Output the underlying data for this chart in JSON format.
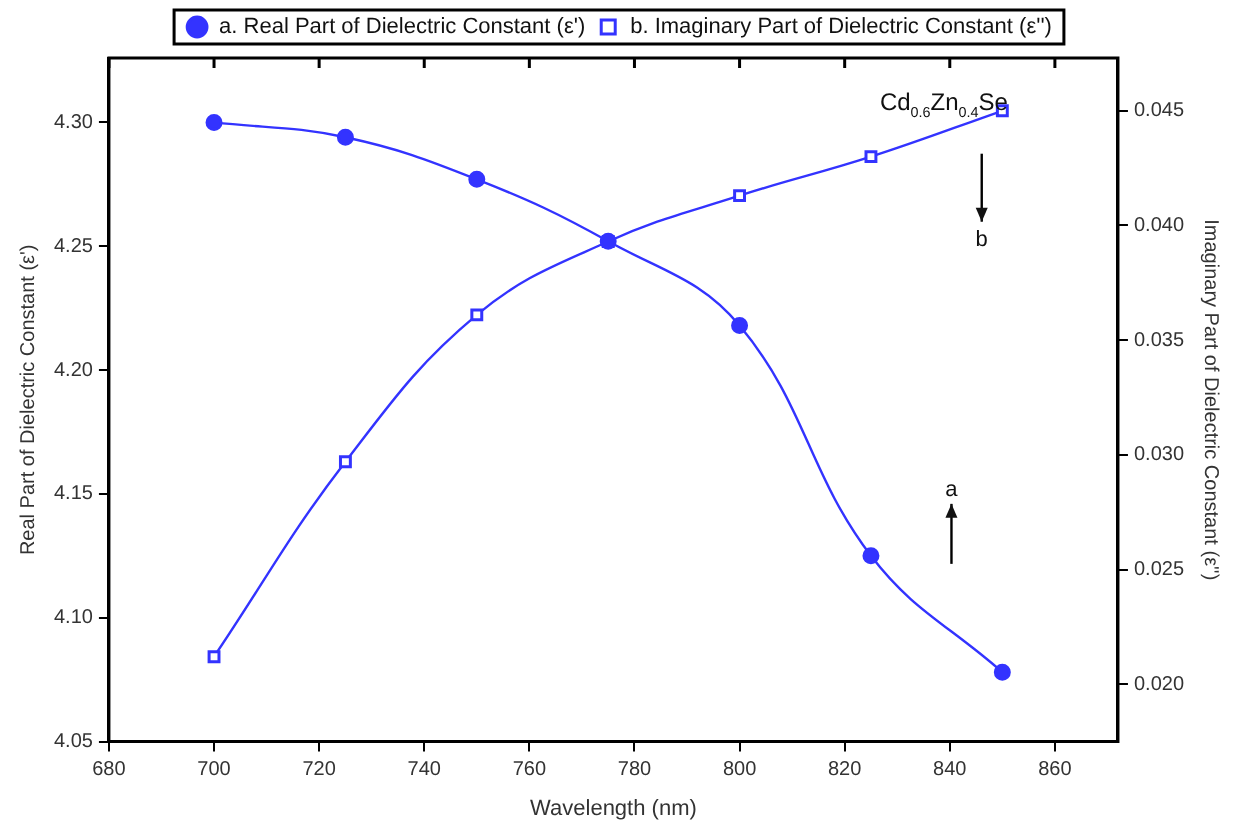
{
  "chart_data": {
    "type": "line",
    "xlabel": "Wavelength (nm)",
    "ylabel": "Real Part of Dielectric Constant (ε')",
    "y2label": "Imaginary Part of Dielectric Constant (ε'')",
    "x": [
      700,
      725,
      750,
      775,
      800,
      825,
      850
    ],
    "series": [
      {
        "name": "a. Real Part of Dielectric Constant (ε')",
        "color": "#3333ff",
        "marker": "circle",
        "values": [
          4.3,
          4.294,
          4.277,
          4.252,
          4.218,
          4.125,
          4.078
        ]
      },
      {
        "name": "b. Imaginary Part of Dielectric Constant (ε'')",
        "color": "#3333ff",
        "marker": "square",
        "axis": "y2",
        "values": [
          0.0212,
          0.0297,
          0.0361,
          0.0393,
          0.0413,
          0.043,
          0.045
        ]
      }
    ],
    "xlim": [
      680,
      872
    ],
    "xticks": [
      680,
      700,
      720,
      740,
      760,
      780,
      800,
      820,
      840,
      860
    ],
    "ylim": [
      4.05,
      4.326
    ],
    "yticks": [
      {
        "value": 4.05,
        "label": "4.05"
      },
      {
        "value": 4.1,
        "label": "4.10"
      },
      {
        "value": 4.15,
        "label": "4.15"
      },
      {
        "value": 4.2,
        "label": "4.20"
      },
      {
        "value": 4.25,
        "label": "4.25"
      },
      {
        "value": 4.3,
        "label": "4.30"
      }
    ],
    "y2lim": [
      0.0175,
      0.0473
    ],
    "y2ticks": [
      {
        "value": 0.02,
        "label": "0.020"
      },
      {
        "value": 0.025,
        "label": "0.025"
      },
      {
        "value": 0.03,
        "label": "0.030"
      },
      {
        "value": 0.035,
        "label": "0.035"
      },
      {
        "value": 0.04,
        "label": "0.040"
      },
      {
        "value": 0.045,
        "label": "0.045"
      }
    ],
    "grid": false,
    "legend": "top",
    "line_style": "solid",
    "annotations": [
      "Cd$_{0.6}$Zn$_{0.4}$Se",
      "a",
      "b"
    ]
  }
}
